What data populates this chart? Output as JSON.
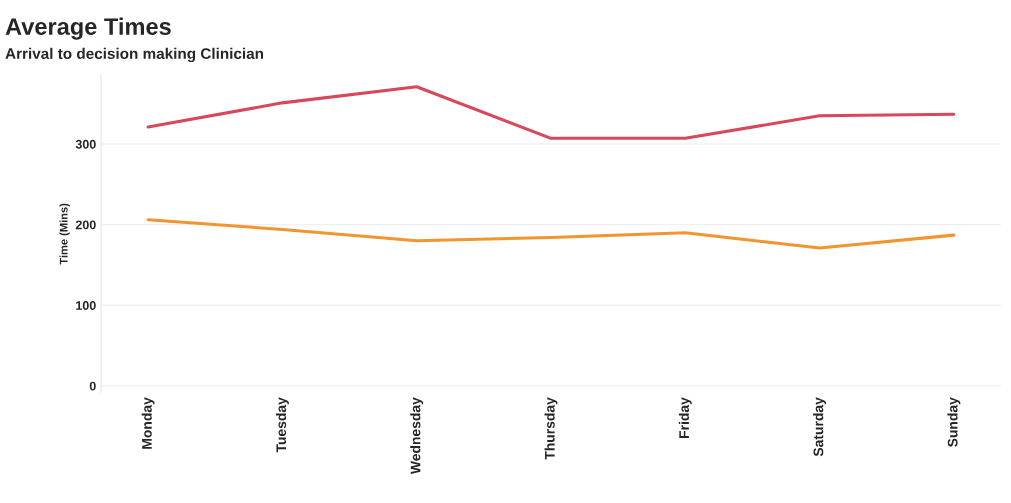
{
  "chart_data": {
    "type": "line",
    "title": "Average Times",
    "subtitle": "Arrival to decision making Clinician",
    "ylabel": "Time (Mins)",
    "categories": [
      "Monday",
      "Tuesday",
      "Wednesday",
      "Thursday",
      "Friday",
      "Saturday",
      "Sunday"
    ],
    "series": [
      {
        "color": "#d8475a",
        "values": [
          321,
          351,
          371,
          307,
          307,
          335,
          337
        ]
      },
      {
        "color": "#f2952f",
        "values": [
          206,
          194,
          180,
          184,
          190,
          171,
          187
        ]
      }
    ],
    "ylim": [
      -8,
      385
    ],
    "yticks": [
      0,
      100,
      200,
      300
    ],
    "grid": "y",
    "legend": false,
    "marker": "none",
    "line_style": "solid"
  }
}
